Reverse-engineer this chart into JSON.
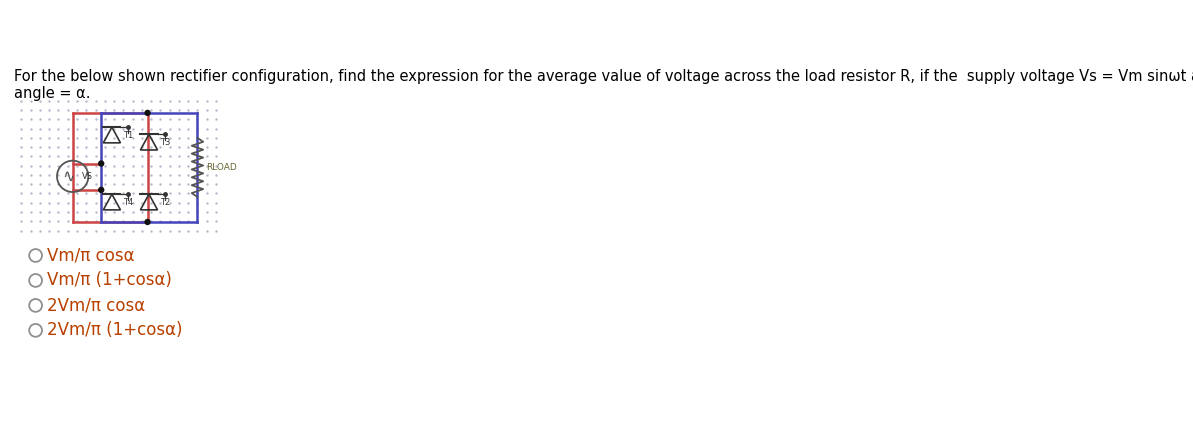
{
  "title_text": "For the below shown rectifier configuration, find the expression for the average value of voltage across the load resistor R, if the  supply voltage Vs = Vm sinωt and firing\nangle = α.",
  "title_fontsize": 10.5,
  "title_color": "#000000",
  "background_color": "#ffffff",
  "dot_color": "#b8b8cc",
  "red_color": "#cc4444",
  "blue_color": "#4444bb",
  "dark_color": "#444444",
  "options": [
    "Vm/π cosα",
    "Vm/π (1+cosα)",
    "2Vm/π cosα",
    "2Vm/π (1+cosα)"
  ],
  "option_color": "#b84000",
  "circle_color": "#909090",
  "option_fontsize": 12
}
